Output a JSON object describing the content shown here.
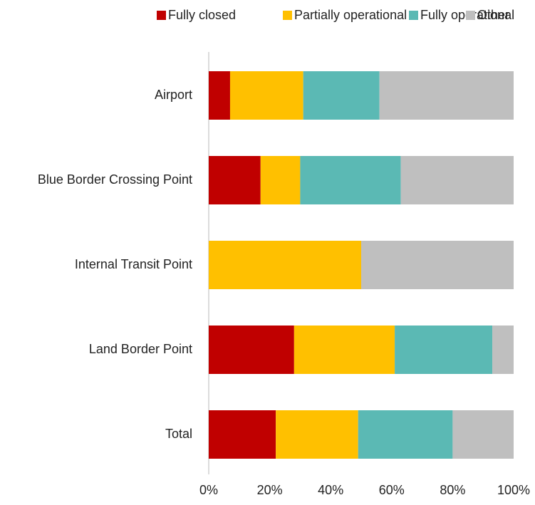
{
  "chart_data": {
    "type": "stacked_bar_horizontal",
    "categories": [
      "Airport",
      "Blue Border Crossing Point",
      "Internal Transit Point",
      "Land Border Point",
      "Total"
    ],
    "series": [
      {
        "name": "Fully closed",
        "color": "#c00000",
        "values": [
          7,
          17,
          0,
          28,
          22
        ]
      },
      {
        "name": "Partially operational",
        "color": "#ffc000",
        "values": [
          24,
          13,
          50,
          33,
          27
        ]
      },
      {
        "name": "Fully operational",
        "color": "#5bb9b4",
        "values": [
          25,
          33,
          0,
          32,
          31
        ]
      },
      {
        "name": "Other",
        "color": "#bfbfbf",
        "values": [
          44,
          37,
          50,
          7,
          20
        ]
      }
    ],
    "xlim": [
      0,
      100
    ],
    "xticks": [
      {
        "value": 0,
        "label": "0%"
      },
      {
        "value": 20,
        "label": "20%"
      },
      {
        "value": 40,
        "label": "40%"
      },
      {
        "value": 60,
        "label": "60%"
      },
      {
        "value": 80,
        "label": "80%"
      },
      {
        "value": 100,
        "label": "100%"
      }
    ],
    "legend": "top",
    "grid": false
  }
}
